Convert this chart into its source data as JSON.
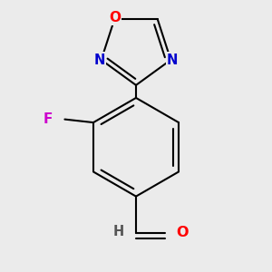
{
  "background_color": "#ebebeb",
  "bond_color": "#000000",
  "bond_width": 1.5,
  "atom_colors": {
    "O": "#ff0000",
    "N": "#0000cd",
    "F": "#cc00cc",
    "H": "#555555",
    "C": "#000000"
  },
  "font_size": 10.5,
  "fig_size": [
    3.0,
    3.0
  ],
  "dpi": 100
}
